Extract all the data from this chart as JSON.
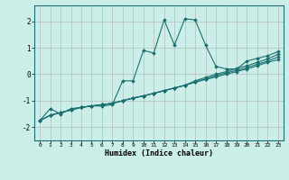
{
  "xlabel": "Humidex (Indice chaleur)",
  "background_color": "#cceee8",
  "grid_color": "#b0b0b0",
  "line_color": "#1a7070",
  "xlim": [
    -0.5,
    23.5
  ],
  "ylim": [
    -2.5,
    2.6
  ],
  "yticks": [
    -2,
    -1,
    0,
    1,
    2
  ],
  "xticks": [
    0,
    1,
    2,
    3,
    4,
    5,
    6,
    7,
    8,
    9,
    10,
    11,
    12,
    13,
    14,
    15,
    16,
    17,
    18,
    19,
    20,
    21,
    22,
    23
  ],
  "series": [
    {
      "x": [
        0,
        1,
        2,
        3,
        4,
        5,
        6,
        7,
        8,
        9,
        10,
        11,
        12,
        13,
        14,
        15,
        16,
        17,
        18,
        19,
        20,
        21,
        22,
        23
      ],
      "y": [
        -1.75,
        -1.3,
        -1.5,
        -1.3,
        -1.25,
        -1.2,
        -1.2,
        -1.15,
        -0.25,
        -0.25,
        0.9,
        0.8,
        2.05,
        1.1,
        2.1,
        2.05,
        1.1,
        0.3,
        0.2,
        0.2,
        0.5,
        0.6,
        0.7,
        0.85
      ]
    },
    {
      "x": [
        0,
        1,
        2,
        3,
        4,
        5,
        6,
        7,
        8,
        9,
        10,
        11,
        12,
        13,
        14,
        15,
        16,
        17,
        18,
        19,
        20,
        21,
        22,
        23
      ],
      "y": [
        -1.75,
        -1.55,
        -1.45,
        -1.35,
        -1.25,
        -1.2,
        -1.15,
        -1.1,
        -1.0,
        -0.9,
        -0.82,
        -0.72,
        -0.62,
        -0.52,
        -0.42,
        -0.3,
        -0.2,
        -0.1,
        0.0,
        0.1,
        0.2,
        0.32,
        0.45,
        0.55
      ]
    },
    {
      "x": [
        0,
        1,
        2,
        3,
        4,
        5,
        6,
        7,
        8,
        9,
        10,
        11,
        12,
        13,
        14,
        15,
        16,
        17,
        18,
        19,
        20,
        21,
        22,
        23
      ],
      "y": [
        -1.75,
        -1.55,
        -1.45,
        -1.35,
        -1.25,
        -1.2,
        -1.15,
        -1.1,
        -1.0,
        -0.9,
        -0.82,
        -0.72,
        -0.62,
        -0.52,
        -0.42,
        -0.28,
        -0.18,
        -0.05,
        0.05,
        0.15,
        0.25,
        0.38,
        0.5,
        0.65
      ]
    },
    {
      "x": [
        0,
        1,
        2,
        3,
        4,
        5,
        6,
        7,
        8,
        9,
        10,
        11,
        12,
        13,
        14,
        15,
        16,
        17,
        18,
        19,
        20,
        21,
        22,
        23
      ],
      "y": [
        -1.75,
        -1.55,
        -1.45,
        -1.35,
        -1.25,
        -1.2,
        -1.15,
        -1.1,
        -1.0,
        -0.9,
        -0.82,
        -0.72,
        -0.62,
        -0.52,
        -0.42,
        -0.25,
        -0.12,
        0.0,
        0.1,
        0.22,
        0.32,
        0.45,
        0.58,
        0.75
      ]
    }
  ]
}
